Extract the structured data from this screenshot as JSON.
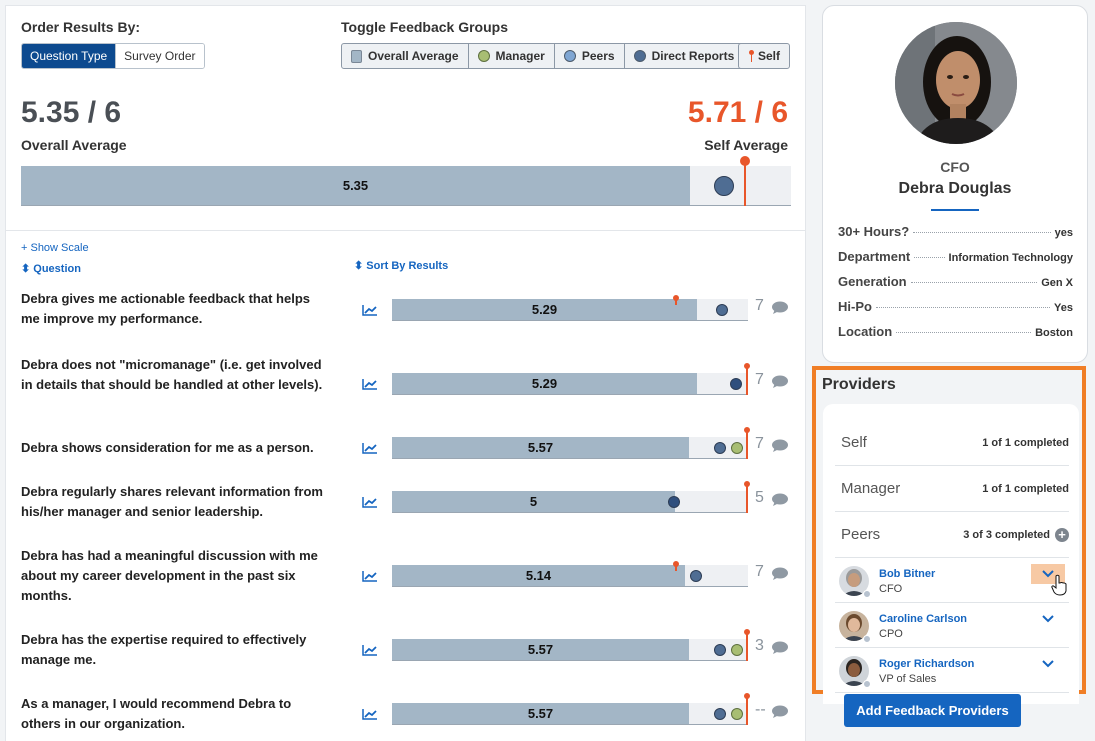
{
  "order": {
    "label": "Order Results By:",
    "options": [
      "Question Type",
      "Survey Order"
    ]
  },
  "toggle": {
    "label": "Toggle Feedback Groups",
    "groups": [
      "Overall Average",
      "Manager",
      "Peers",
      "Direct Reports"
    ],
    "self": "Self"
  },
  "scores": {
    "overall": "5.35 / 6",
    "overall_label": "Overall Average",
    "self": "5.71 / 6",
    "self_label": "Self Average",
    "overall_bar": "5.35"
  },
  "colors": {
    "accent": "#0d4a8f",
    "self": "#e8562a",
    "bar": "#a3b6c6",
    "link": "#1565c0",
    "highlight": "#f07e26"
  },
  "list": {
    "show_scale": "+ Show Scale",
    "question_header": "Question",
    "sort_header": "Sort By Results"
  },
  "questions": [
    {
      "text": "Debra gives me actionable feedback that helps me improve my performance.",
      "score": "5.29",
      "count": "7"
    },
    {
      "text": "Debra does not \"micromanage\" (i.e. get involved in details that should be handled at other levels).",
      "score": "5.29",
      "count": "7"
    },
    {
      "text": "Debra shows consideration for me as a person.",
      "score": "5.57",
      "count": "7"
    },
    {
      "text": "Debra regularly shares relevant information from his/her manager and senior leadership.",
      "score": "5",
      "count": "5"
    },
    {
      "text": "Debra has had a meaningful discussion with me about my career development in the past six months.",
      "score": "5.14",
      "count": "7"
    },
    {
      "text": "Debra has the expertise required to effectively manage me.",
      "score": "5.57",
      "count": "3"
    },
    {
      "text": "As a manager, I would recommend Debra to others in our organization.",
      "score": "5.57",
      "count": "--"
    }
  ],
  "profile": {
    "title": "CFO",
    "name": "Debra Douglas",
    "attributes": [
      {
        "key": "30+ Hours?",
        "value": "yes"
      },
      {
        "key": "Department",
        "value": "Information Technology"
      },
      {
        "key": "Generation",
        "value": "Gen X"
      },
      {
        "key": "Hi-Po",
        "value": "Yes"
      },
      {
        "key": "Location",
        "value": "Boston"
      }
    ]
  },
  "providers": {
    "title": "Providers",
    "groups": [
      {
        "name": "Self",
        "status": "1 of 1 completed"
      },
      {
        "name": "Manager",
        "status": "1 of 1 completed"
      },
      {
        "name": "Peers",
        "status": "3 of 3 completed"
      }
    ],
    "peers": [
      {
        "name": "Bob Bitner",
        "role": "CFO"
      },
      {
        "name": "Caroline Carlson",
        "role": "CPO"
      },
      {
        "name": "Roger Richardson",
        "role": "VP of Sales"
      }
    ],
    "add_button": "Add Feedback Providers"
  }
}
